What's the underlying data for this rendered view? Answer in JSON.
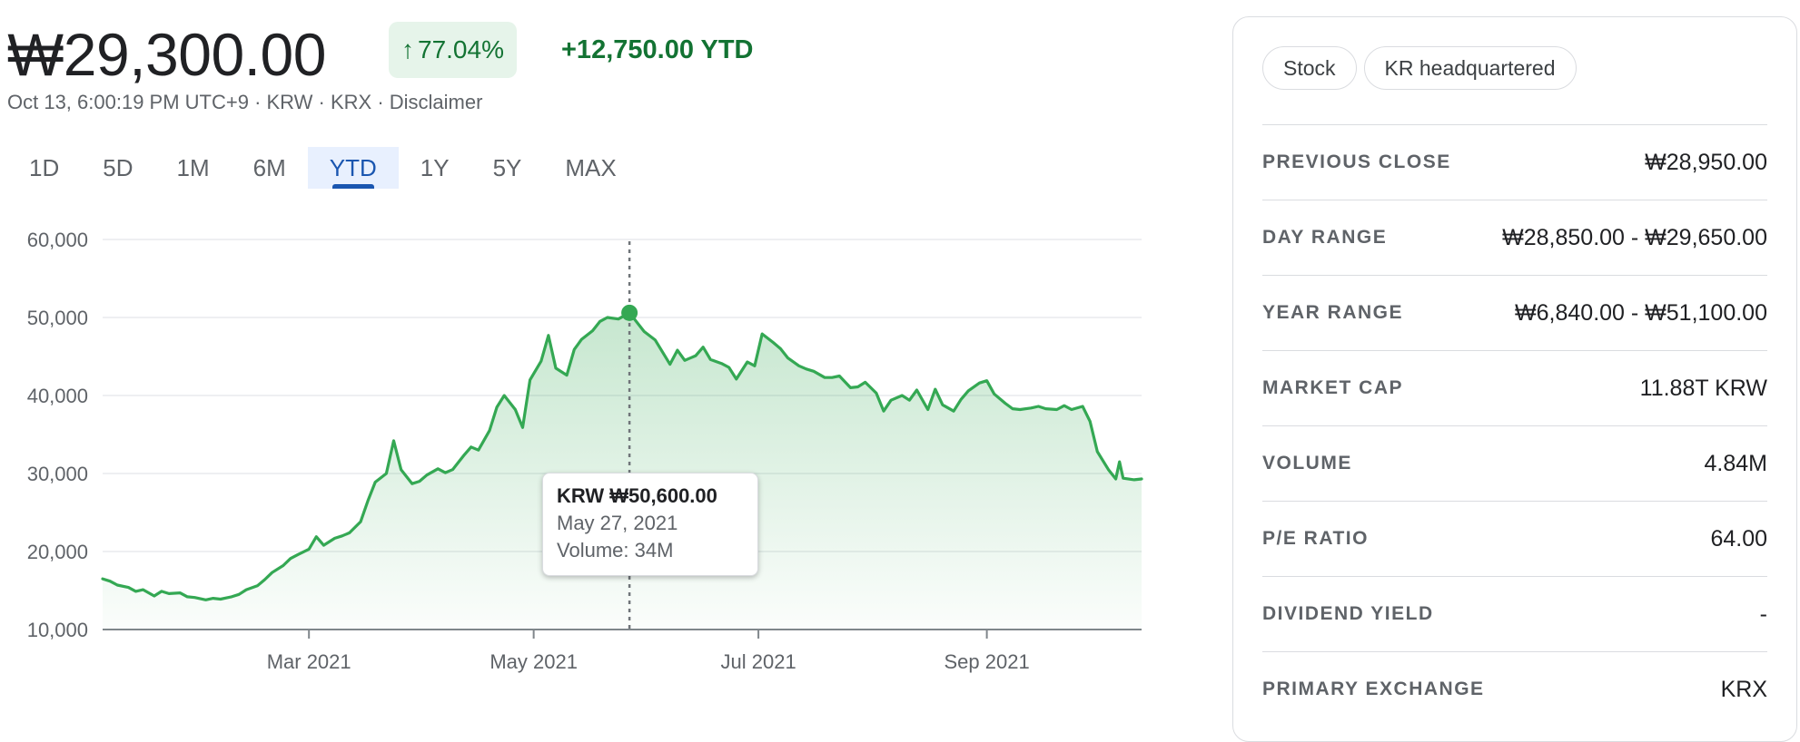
{
  "quote": {
    "price": "₩29,300.00",
    "change_pct": "77.04%",
    "change_arrow": "↑",
    "ytd_change": "+12,750.00 YTD",
    "meta": "Oct 13, 6:00:19 PM UTC+9 · KRW · KRX · Disclaimer"
  },
  "tabs": [
    "1D",
    "5D",
    "1M",
    "6M",
    "YTD",
    "1Y",
    "5Y",
    "MAX"
  ],
  "active_tab": "YTD",
  "tooltip": {
    "price": "KRW ₩50,600.00",
    "date": "May 27, 2021",
    "volume": "Volume: 34M"
  },
  "chart_data": {
    "type": "area",
    "x_start": "2021-01-04",
    "x_end": "2021-10-13",
    "ylim": [
      10000,
      60000
    ],
    "yticks": [
      10000,
      20000,
      30000,
      40000,
      50000,
      60000
    ],
    "ytick_labels": [
      "10,000",
      "20,000",
      "30,000",
      "40,000",
      "50,000",
      "60,000"
    ],
    "xticks": [
      {
        "date": "2021-03-01",
        "label": "Mar 2021"
      },
      {
        "date": "2021-05-01",
        "label": "May 2021"
      },
      {
        "date": "2021-07-01",
        "label": "Jul 2021"
      },
      {
        "date": "2021-09-01",
        "label": "Sep 2021"
      }
    ],
    "grid": true,
    "line_color": "#34a853",
    "highlight": {
      "date": "2021-05-27",
      "value": 50600
    },
    "points": [
      [
        "2021-01-04",
        16500
      ],
      [
        "2021-01-06",
        16200
      ],
      [
        "2021-01-08",
        15700
      ],
      [
        "2021-01-11",
        15400
      ],
      [
        "2021-01-13",
        14900
      ],
      [
        "2021-01-15",
        15100
      ],
      [
        "2021-01-18",
        14300
      ],
      [
        "2021-01-20",
        14900
      ],
      [
        "2021-01-22",
        14600
      ],
      [
        "2021-01-25",
        14700
      ],
      [
        "2021-01-27",
        14200
      ],
      [
        "2021-01-29",
        14100
      ],
      [
        "2021-02-01",
        13800
      ],
      [
        "2021-02-03",
        14000
      ],
      [
        "2021-02-05",
        13900
      ],
      [
        "2021-02-08",
        14200
      ],
      [
        "2021-02-10",
        14500
      ],
      [
        "2021-02-12",
        15100
      ],
      [
        "2021-02-15",
        15600
      ],
      [
        "2021-02-17",
        16400
      ],
      [
        "2021-02-19",
        17300
      ],
      [
        "2021-02-22",
        18200
      ],
      [
        "2021-02-24",
        19100
      ],
      [
        "2021-02-26",
        19600
      ],
      [
        "2021-03-01",
        20300
      ],
      [
        "2021-03-03",
        21900
      ],
      [
        "2021-03-05",
        20800
      ],
      [
        "2021-03-08",
        21700
      ],
      [
        "2021-03-10",
        22000
      ],
      [
        "2021-03-12",
        22400
      ],
      [
        "2021-03-15",
        23800
      ],
      [
        "2021-03-17",
        26500
      ],
      [
        "2021-03-19",
        28900
      ],
      [
        "2021-03-22",
        30000
      ],
      [
        "2021-03-24",
        34200
      ],
      [
        "2021-03-26",
        30500
      ],
      [
        "2021-03-29",
        28700
      ],
      [
        "2021-03-31",
        29000
      ],
      [
        "2021-04-02",
        29800
      ],
      [
        "2021-04-05",
        30600
      ],
      [
        "2021-04-07",
        30100
      ],
      [
        "2021-04-09",
        30500
      ],
      [
        "2021-04-12",
        32300
      ],
      [
        "2021-04-14",
        33400
      ],
      [
        "2021-04-16",
        33000
      ],
      [
        "2021-04-19",
        35500
      ],
      [
        "2021-04-21",
        38500
      ],
      [
        "2021-04-23",
        40000
      ],
      [
        "2021-04-26",
        38200
      ],
      [
        "2021-04-28",
        35900
      ],
      [
        "2021-04-30",
        42000
      ],
      [
        "2021-05-03",
        44400
      ],
      [
        "2021-05-05",
        47700
      ],
      [
        "2021-05-07",
        43500
      ],
      [
        "2021-05-10",
        42600
      ],
      [
        "2021-05-12",
        45900
      ],
      [
        "2021-05-14",
        47200
      ],
      [
        "2021-05-17",
        48300
      ],
      [
        "2021-05-19",
        49500
      ],
      [
        "2021-05-21",
        50000
      ],
      [
        "2021-05-24",
        49800
      ],
      [
        "2021-05-27",
        50600
      ],
      [
        "2021-05-31",
        48200
      ],
      [
        "2021-06-03",
        47100
      ],
      [
        "2021-06-07",
        44000
      ],
      [
        "2021-06-09",
        45800
      ],
      [
        "2021-06-11",
        44500
      ],
      [
        "2021-06-14",
        45100
      ],
      [
        "2021-06-16",
        46200
      ],
      [
        "2021-06-18",
        44600
      ],
      [
        "2021-06-21",
        44100
      ],
      [
        "2021-06-23",
        43600
      ],
      [
        "2021-06-25",
        42100
      ],
      [
        "2021-06-28",
        44300
      ],
      [
        "2021-06-30",
        43800
      ],
      [
        "2021-07-02",
        47900
      ],
      [
        "2021-07-05",
        46800
      ],
      [
        "2021-07-07",
        46000
      ],
      [
        "2021-07-09",
        44800
      ],
      [
        "2021-07-12",
        43800
      ],
      [
        "2021-07-14",
        43400
      ],
      [
        "2021-07-16",
        43100
      ],
      [
        "2021-07-19",
        42300
      ],
      [
        "2021-07-21",
        42300
      ],
      [
        "2021-07-23",
        42500
      ],
      [
        "2021-07-26",
        41000
      ],
      [
        "2021-07-28",
        41100
      ],
      [
        "2021-07-30",
        41700
      ],
      [
        "2021-08-02",
        40300
      ],
      [
        "2021-08-04",
        38000
      ],
      [
        "2021-08-06",
        39400
      ],
      [
        "2021-08-09",
        40000
      ],
      [
        "2021-08-11",
        39400
      ],
      [
        "2021-08-13",
        40700
      ],
      [
        "2021-08-16",
        38200
      ],
      [
        "2021-08-18",
        40800
      ],
      [
        "2021-08-20",
        38800
      ],
      [
        "2021-08-23",
        38000
      ],
      [
        "2021-08-25",
        39500
      ],
      [
        "2021-08-27",
        40600
      ],
      [
        "2021-08-30",
        41600
      ],
      [
        "2021-09-01",
        41900
      ],
      [
        "2021-09-03",
        40200
      ],
      [
        "2021-09-06",
        39000
      ],
      [
        "2021-09-08",
        38300
      ],
      [
        "2021-09-10",
        38200
      ],
      [
        "2021-09-13",
        38400
      ],
      [
        "2021-09-15",
        38600
      ],
      [
        "2021-09-17",
        38300
      ],
      [
        "2021-09-20",
        38200
      ],
      [
        "2021-09-22",
        38700
      ],
      [
        "2021-09-24",
        38200
      ],
      [
        "2021-09-27",
        38600
      ],
      [
        "2021-09-29",
        36700
      ],
      [
        "2021-10-01",
        32800
      ],
      [
        "2021-10-04",
        30500
      ],
      [
        "2021-10-06",
        29300
      ],
      [
        "2021-10-07",
        31500
      ],
      [
        "2021-10-08",
        29400
      ],
      [
        "2021-10-11",
        29200
      ],
      [
        "2021-10-13",
        29300
      ]
    ]
  },
  "stats": {
    "tags": [
      "Stock",
      "KR headquartered"
    ],
    "rows": [
      {
        "label": "PREVIOUS CLOSE",
        "value": "₩28,950.00"
      },
      {
        "label": "DAY RANGE",
        "value": "₩28,850.00 - ₩29,650.00"
      },
      {
        "label": "YEAR RANGE",
        "value": "₩6,840.00 - ₩51,100.00"
      },
      {
        "label": "MARKET CAP",
        "value": "11.88T KRW"
      },
      {
        "label": "VOLUME",
        "value": "4.84M"
      },
      {
        "label": "P/E RATIO",
        "value": "64.00"
      },
      {
        "label": "DIVIDEND YIELD",
        "value": "-"
      },
      {
        "label": "PRIMARY EXCHANGE",
        "value": "KRX"
      }
    ]
  }
}
